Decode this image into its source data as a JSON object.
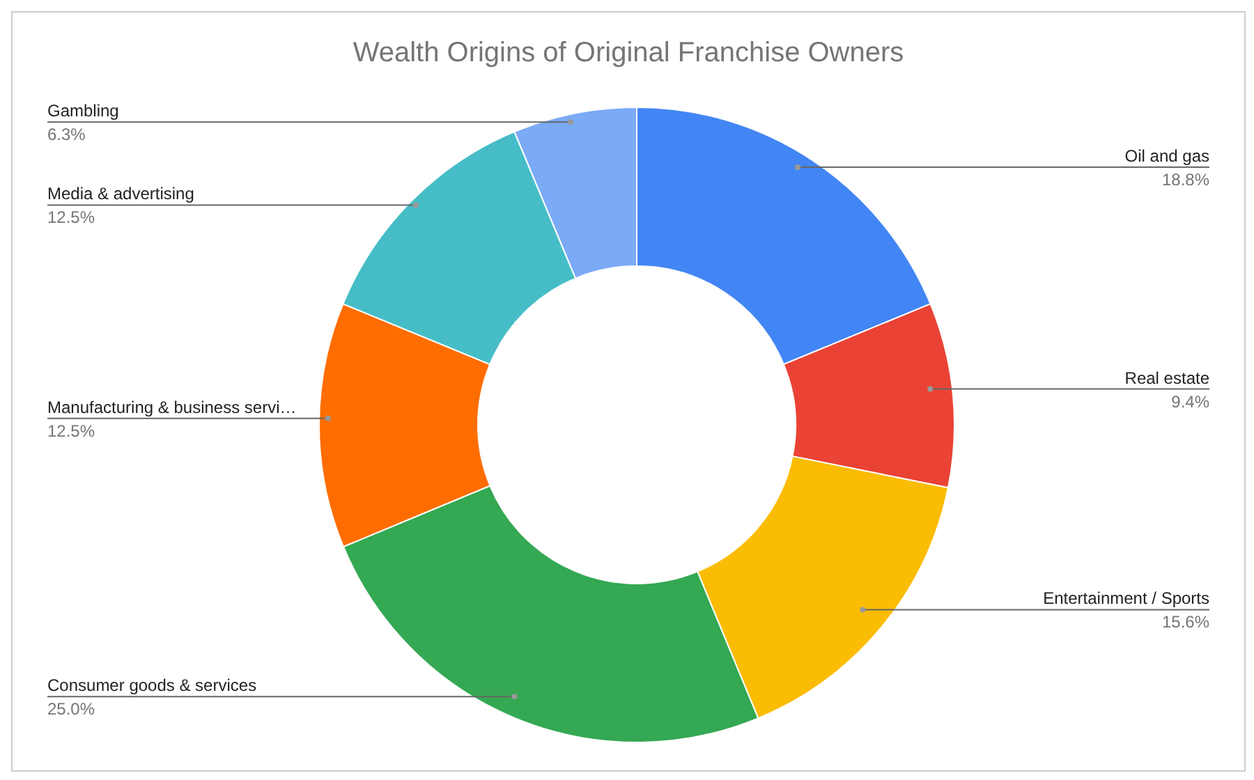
{
  "chart_data": {
    "type": "donut",
    "title": "Wealth Origins of Original Franchise Owners",
    "categories": [
      "Oil and gas",
      "Real estate",
      "Entertainment / Sports",
      "Consumer goods & services",
      "Manufacturing & business servi…",
      "Media & advertising",
      "Gambling"
    ],
    "values": [
      18.8,
      9.4,
      15.6,
      25.0,
      12.5,
      12.5,
      6.3
    ],
    "value_labels": [
      "18.8%",
      "9.4%",
      "15.6%",
      "25.0%",
      "12.5%",
      "12.5%",
      "6.3%"
    ],
    "colors": [
      "#4285f4",
      "#ea4335",
      "#fbbc04",
      "#34a853",
      "#ff6d01",
      "#46bdc6",
      "#7baaf7"
    ],
    "legend": false
  }
}
